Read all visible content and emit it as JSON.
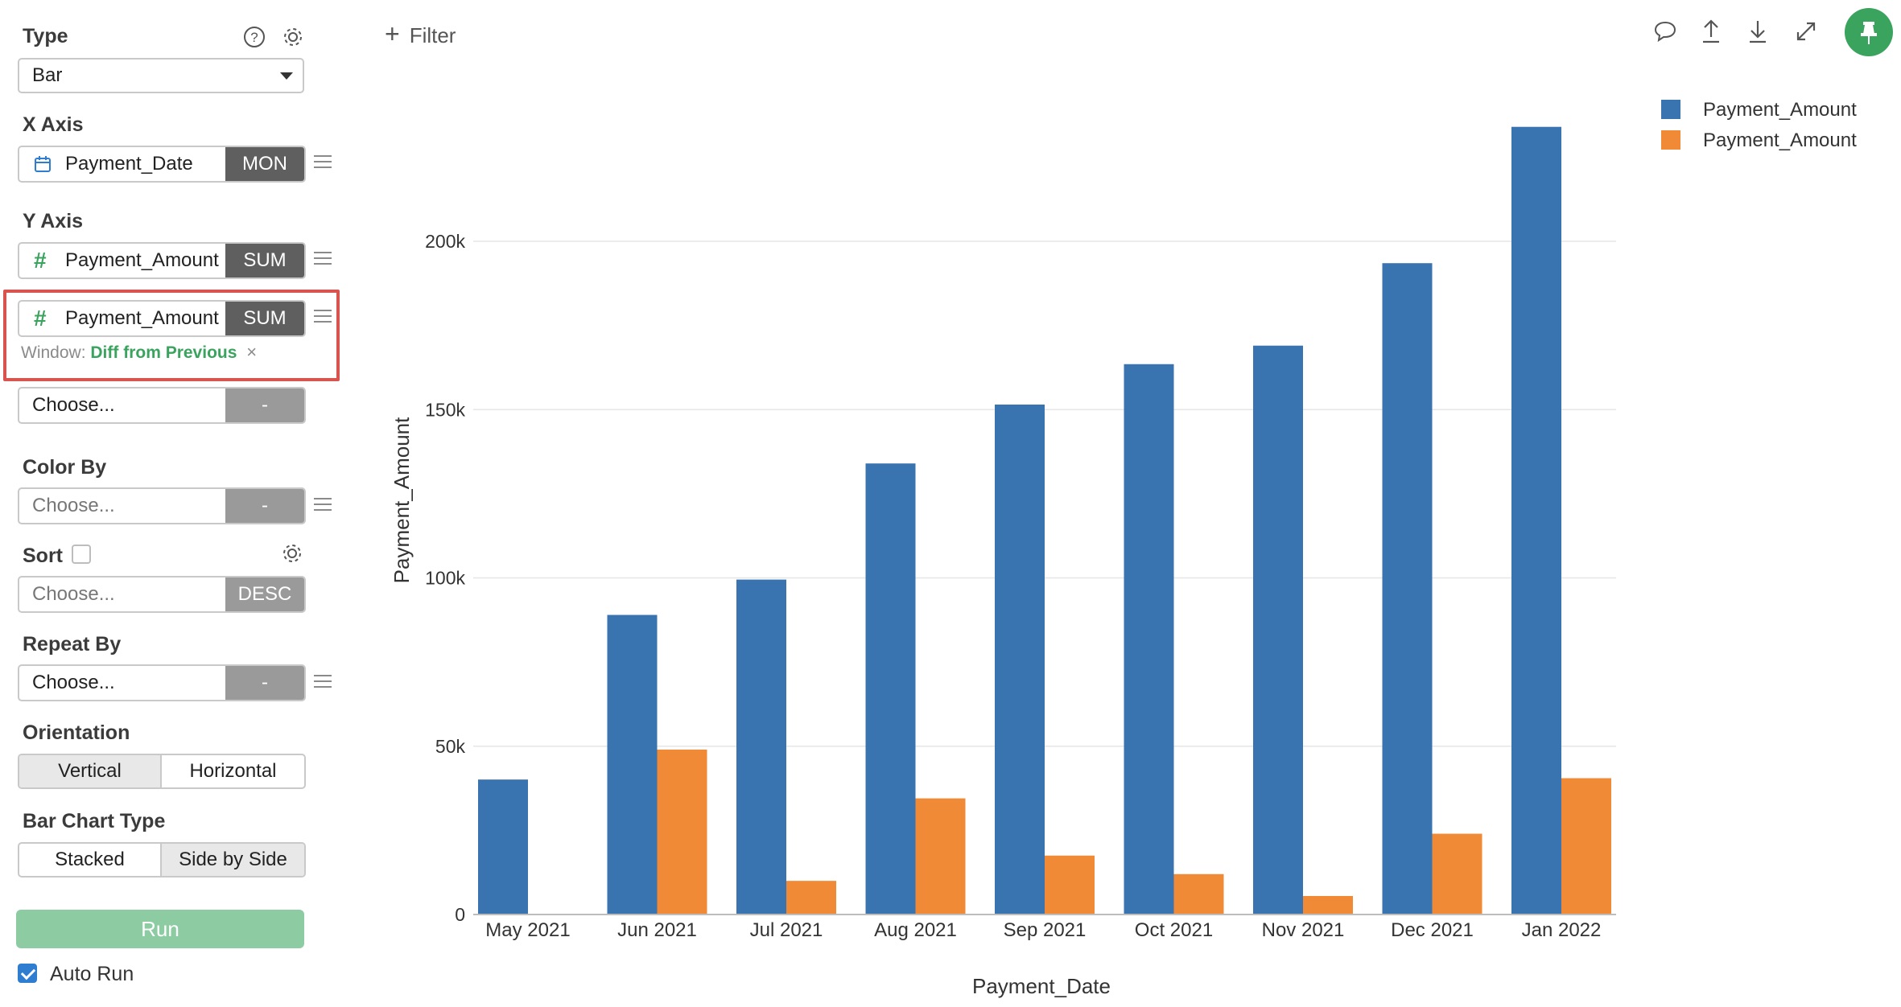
{
  "panel": {
    "type": {
      "label": "Type",
      "value": "Bar"
    },
    "x_axis": {
      "label": "X Axis",
      "field": "Payment_Date",
      "agg": "MON"
    },
    "y_axis": {
      "label": "Y Axis",
      "items": [
        {
          "field": "Payment_Amount",
          "agg": "SUM"
        },
        {
          "field": "Payment_Amount",
          "agg": "SUM",
          "window_label": "Window:",
          "window_value": "Diff from Previous",
          "window_remove": "×"
        }
      ],
      "add_placeholder": "Choose...",
      "add_agg": "-"
    },
    "color_by": {
      "label": "Color By",
      "placeholder": "Choose...",
      "agg": "-"
    },
    "sort": {
      "label": "Sort",
      "checked": false,
      "placeholder": "Choose...",
      "order": "DESC"
    },
    "repeat_by": {
      "label": "Repeat By",
      "placeholder": "Choose...",
      "agg": "-"
    },
    "orientation": {
      "label": "Orientation",
      "options": [
        "Vertical",
        "Horizontal"
      ],
      "selected": "Vertical"
    },
    "bar_chart_type": {
      "label": "Bar Chart Type",
      "options": [
        "Stacked",
        "Side by Side"
      ],
      "selected": "Side by Side"
    },
    "run_label": "Run",
    "auto_run": {
      "label": "Auto Run",
      "checked": true
    }
  },
  "toolbar": {
    "filter_label": "Filter",
    "icons": [
      "comment-icon",
      "upload-icon",
      "download-icon",
      "expand-icon",
      "pin-icon"
    ]
  },
  "colors": {
    "series_blue": "#3a74b0",
    "series_orange": "#f08a36",
    "accent_green": "#3aa35e",
    "highlight_red": "#d9534f"
  },
  "chart_data": {
    "type": "bar",
    "categories": [
      "May 2021",
      "Jun 2021",
      "Jul 2021",
      "Aug 2021",
      "Sep 2021",
      "Oct 2021",
      "Nov 2021",
      "Dec 2021",
      "Jan 2022"
    ],
    "series": [
      {
        "name": "Payment_Amount",
        "color": "#3a74b0",
        "values": [
          40100,
          89000,
          99500,
          134000,
          151500,
          163500,
          169000,
          193500,
          234000
        ]
      },
      {
        "name": "Payment_Amount",
        "color": "#f08a36",
        "values": [
          null,
          49000,
          10000,
          34500,
          17500,
          12000,
          5500,
          24000,
          40500
        ]
      }
    ],
    "xlabel": "Payment_Date",
    "ylabel": "Payment_Amount",
    "ylim": [
      0,
      240000
    ],
    "yticks": [
      0,
      50000,
      100000,
      150000,
      200000
    ],
    "ytick_labels": [
      "0",
      "50k",
      "100k",
      "150k",
      "200k"
    ],
    "legend_position": "top-right",
    "grid": true
  }
}
